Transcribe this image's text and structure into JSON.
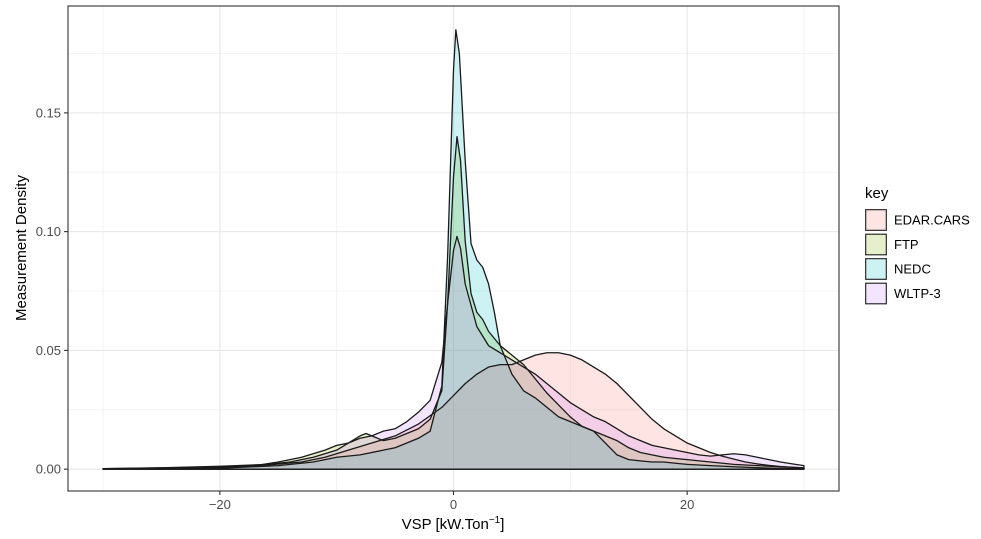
{
  "chart_data": {
    "type": "area",
    "subtype": "density",
    "xlabel": "VSP [kW.Ton",
    "xlabel_superscript": "−1",
    "xlabel_suffix": "]",
    "ylabel": "Measurement Density",
    "xlim": [
      -33,
      33
    ],
    "ylim": [
      -0.0092,
      0.195
    ],
    "x_ticks": [
      -20,
      0,
      20
    ],
    "x_tick_labels": [
      "−20",
      "0",
      "20"
    ],
    "y_ticks": [
      0,
      0.05,
      0.1,
      0.15
    ],
    "y_tick_labels": [
      "0.00",
      "0.05",
      "0.10",
      "0.15"
    ],
    "grid": true,
    "legend": {
      "title": "key",
      "placement": "right"
    },
    "series": [
      {
        "name": "EDAR.CARS",
        "color": "#F8766D",
        "points": [
          [
            -30,
            0.0002
          ],
          [
            -25,
            0.0005
          ],
          [
            -20,
            0.0009
          ],
          [
            -16,
            0.0017
          ],
          [
            -13,
            0.003
          ],
          [
            -11,
            0.005
          ],
          [
            -9,
            0.008
          ],
          [
            -7,
            0.011
          ],
          [
            -5,
            0.014
          ],
          [
            -3,
            0.019
          ],
          [
            -1,
            0.026
          ],
          [
            0,
            0.031
          ],
          [
            1,
            0.036
          ],
          [
            2,
            0.04
          ],
          [
            3,
            0.043
          ],
          [
            4,
            0.044
          ],
          [
            5,
            0.044
          ],
          [
            6,
            0.046
          ],
          [
            7,
            0.048
          ],
          [
            8,
            0.049
          ],
          [
            9,
            0.049
          ],
          [
            10,
            0.048
          ],
          [
            11,
            0.046
          ],
          [
            12,
            0.043
          ],
          [
            13,
            0.04
          ],
          [
            14,
            0.036
          ],
          [
            15,
            0.031
          ],
          [
            16,
            0.026
          ],
          [
            17,
            0.021
          ],
          [
            18,
            0.017
          ],
          [
            19,
            0.014
          ],
          [
            20,
            0.011
          ],
          [
            21,
            0.009
          ],
          [
            22,
            0.007
          ],
          [
            23,
            0.0055
          ],
          [
            24,
            0.0042
          ],
          [
            25,
            0.003
          ],
          [
            26,
            0.0022
          ],
          [
            27,
            0.0016
          ],
          [
            28,
            0.0011
          ],
          [
            29,
            0.0008
          ],
          [
            30,
            0.0005
          ]
        ]
      },
      {
        "name": "FTP",
        "color": "#7CAE00",
        "points": [
          [
            -30,
            0.0001
          ],
          [
            -25,
            0.0003
          ],
          [
            -20,
            0.0007
          ],
          [
            -17,
            0.0015
          ],
          [
            -15,
            0.003
          ],
          [
            -13,
            0.005
          ],
          [
            -11,
            0.008
          ],
          [
            -10,
            0.01
          ],
          [
            -9,
            0.011
          ],
          [
            -8,
            0.014
          ],
          [
            -7.5,
            0.015
          ],
          [
            -7,
            0.014
          ],
          [
            -6,
            0.012
          ],
          [
            -5,
            0.013
          ],
          [
            -4,
            0.015
          ],
          [
            -3,
            0.017
          ],
          [
            -2,
            0.021
          ],
          [
            -1,
            0.033
          ],
          [
            -0.5,
            0.07
          ],
          [
            0,
            0.123
          ],
          [
            0.3,
            0.14
          ],
          [
            0.6,
            0.13
          ],
          [
            1,
            0.096
          ],
          [
            1.5,
            0.074
          ],
          [
            2,
            0.066
          ],
          [
            2.5,
            0.063
          ],
          [
            3,
            0.058
          ],
          [
            4,
            0.052
          ],
          [
            5,
            0.048
          ],
          [
            6,
            0.044
          ],
          [
            7,
            0.038
          ],
          [
            8,
            0.032
          ],
          [
            9,
            0.027
          ],
          [
            10,
            0.022
          ],
          [
            11,
            0.018
          ],
          [
            12,
            0.016
          ],
          [
            13,
            0.014
          ],
          [
            14,
            0.012
          ],
          [
            15,
            0.009
          ],
          [
            16,
            0.007
          ],
          [
            17,
            0.006
          ],
          [
            18,
            0.005
          ],
          [
            19,
            0.0045
          ],
          [
            20,
            0.004
          ],
          [
            22,
            0.003
          ],
          [
            24,
            0.002
          ],
          [
            26,
            0.0015
          ],
          [
            28,
            0.001
          ],
          [
            30,
            0.0005
          ]
        ]
      },
      {
        "name": "NEDC",
        "color": "#00BFC4",
        "points": [
          [
            -30,
            0.0001
          ],
          [
            -25,
            0.0002
          ],
          [
            -20,
            0.0004
          ],
          [
            -15,
            0.0015
          ],
          [
            -12,
            0.003
          ],
          [
            -10,
            0.005
          ],
          [
            -8,
            0.006
          ],
          [
            -6,
            0.008
          ],
          [
            -5,
            0.009
          ],
          [
            -4,
            0.011
          ],
          [
            -3,
            0.013
          ],
          [
            -2,
            0.016
          ],
          [
            -1,
            0.035
          ],
          [
            -0.5,
            0.09
          ],
          [
            0,
            0.168
          ],
          [
            0.2,
            0.185
          ],
          [
            0.5,
            0.175
          ],
          [
            1,
            0.13
          ],
          [
            1.5,
            0.095
          ],
          [
            2,
            0.088
          ],
          [
            2.5,
            0.085
          ],
          [
            3,
            0.078
          ],
          [
            3.5,
            0.066
          ],
          [
            4,
            0.052
          ],
          [
            5,
            0.04
          ],
          [
            6,
            0.033
          ],
          [
            7,
            0.03
          ],
          [
            8,
            0.026
          ],
          [
            9,
            0.022
          ],
          [
            10,
            0.02
          ],
          [
            11,
            0.018
          ],
          [
            12,
            0.016
          ],
          [
            13,
            0.011
          ],
          [
            14,
            0.006
          ],
          [
            15,
            0.004
          ],
          [
            16,
            0.0035
          ],
          [
            17,
            0.003
          ],
          [
            18,
            0.003
          ],
          [
            19,
            0.0025
          ],
          [
            20,
            0.002
          ],
          [
            22,
            0.0015
          ],
          [
            24,
            0.001
          ],
          [
            26,
            0.0006
          ],
          [
            28,
            0.0003
          ],
          [
            30,
            0.0002
          ]
        ]
      },
      {
        "name": "WLTP-3",
        "color": "#C77CFF",
        "points": [
          [
            -30,
            0.0002
          ],
          [
            -25,
            0.0006
          ],
          [
            -20,
            0.0012
          ],
          [
            -16,
            0.002
          ],
          [
            -14,
            0.003
          ],
          [
            -12,
            0.005
          ],
          [
            -10,
            0.008
          ],
          [
            -9,
            0.011
          ],
          [
            -8,
            0.013
          ],
          [
            -7,
            0.014
          ],
          [
            -6,
            0.016
          ],
          [
            -5,
            0.017
          ],
          [
            -4,
            0.02
          ],
          [
            -3,
            0.024
          ],
          [
            -2,
            0.029
          ],
          [
            -1,
            0.045
          ],
          [
            -0.5,
            0.07
          ],
          [
            0,
            0.092
          ],
          [
            0.3,
            0.098
          ],
          [
            0.6,
            0.093
          ],
          [
            1,
            0.078
          ],
          [
            2,
            0.06
          ],
          [
            3,
            0.052
          ],
          [
            4,
            0.049
          ],
          [
            5,
            0.046
          ],
          [
            6,
            0.043
          ],
          [
            7,
            0.04
          ],
          [
            8,
            0.036
          ],
          [
            9,
            0.032
          ],
          [
            10,
            0.028
          ],
          [
            11,
            0.025
          ],
          [
            12,
            0.022
          ],
          [
            13,
            0.02
          ],
          [
            14,
            0.017
          ],
          [
            15,
            0.014
          ],
          [
            16,
            0.012
          ],
          [
            17,
            0.01
          ],
          [
            18,
            0.009
          ],
          [
            19,
            0.008
          ],
          [
            20,
            0.007
          ],
          [
            21,
            0.006
          ],
          [
            22,
            0.0055
          ],
          [
            23,
            0.006
          ],
          [
            24,
            0.0065
          ],
          [
            25,
            0.006
          ],
          [
            26,
            0.005
          ],
          [
            27,
            0.004
          ],
          [
            28,
            0.003
          ],
          [
            29,
            0.0022
          ],
          [
            30,
            0.0015
          ]
        ]
      }
    ]
  }
}
